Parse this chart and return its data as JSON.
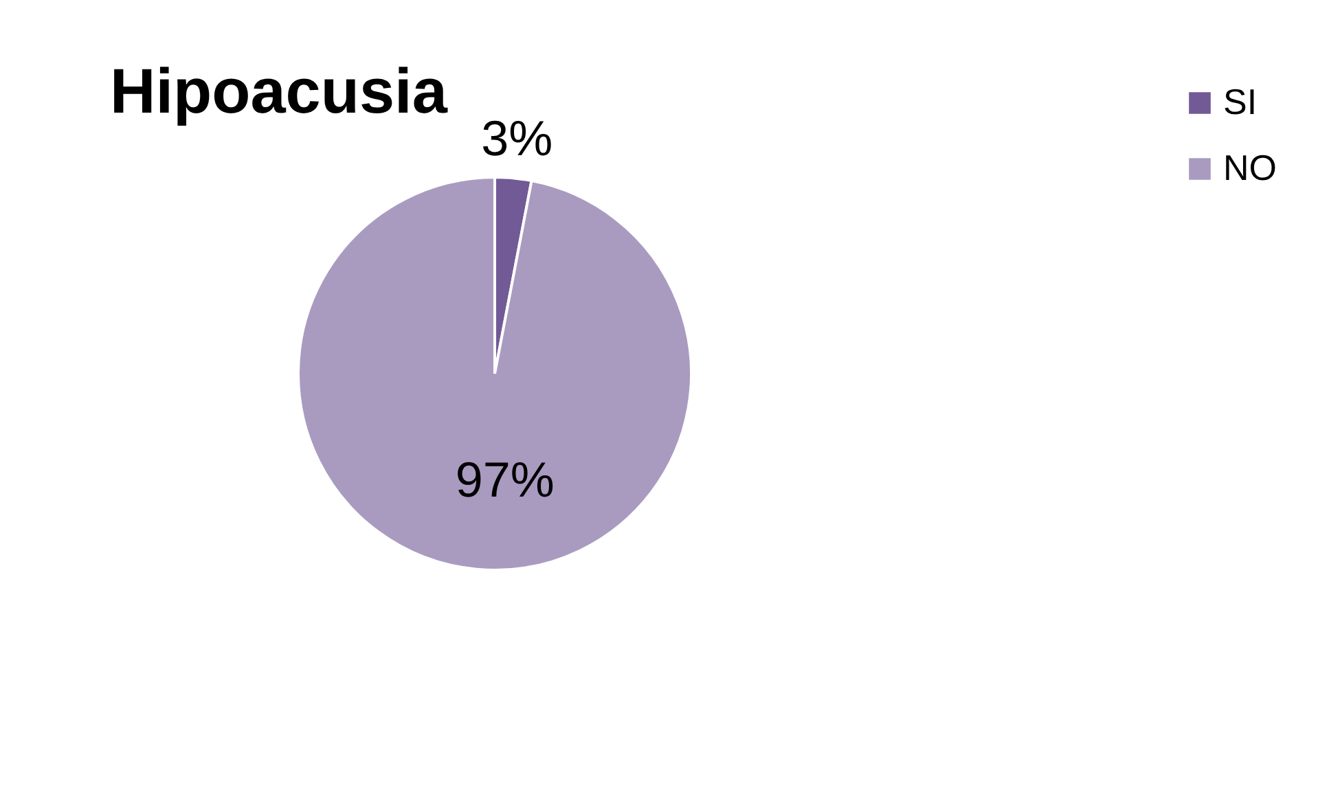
{
  "chart_data": {
    "type": "pie",
    "title": "Hipoacusia",
    "categories": [
      "SI",
      "NO"
    ],
    "values": [
      3,
      97
    ],
    "colors": [
      "#725a96",
      "#a99bc0"
    ],
    "value_labels": [
      "3%",
      "97%"
    ],
    "legend": "right"
  }
}
